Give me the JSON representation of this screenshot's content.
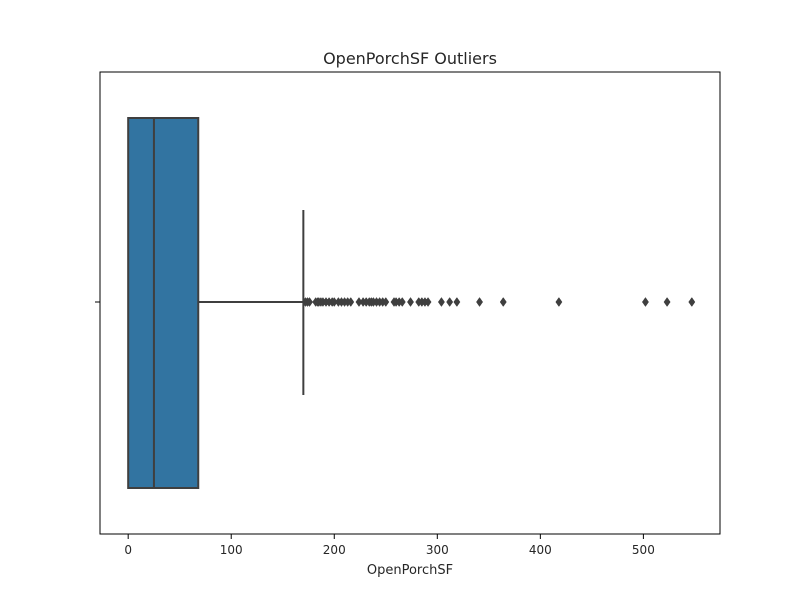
{
  "chart_data": {
    "type": "boxplot",
    "orientation": "horizontal",
    "title": "OpenPorchSF Outliers",
    "xlabel": "OpenPorchSF",
    "ylabel": "",
    "xlim": [
      -27.35,
      574.35
    ],
    "xticks": [
      0,
      100,
      200,
      300,
      400,
      500
    ],
    "xtick_labels": [
      "0",
      "100",
      "200",
      "300",
      "400",
      "500"
    ],
    "grid": false,
    "box": {
      "whisker_low": 0,
      "q1": 0,
      "median": 25,
      "q3": 68,
      "whisker_high": 170
    },
    "outliers": [
      172,
      174,
      176,
      182,
      184,
      185,
      187,
      189,
      192,
      195,
      198,
      200,
      204,
      207,
      210,
      213,
      216,
      224,
      228,
      231,
      234,
      236,
      238,
      241,
      244,
      247,
      250,
      258,
      260,
      263,
      266,
      274,
      282,
      285,
      288,
      291,
      304,
      312,
      319,
      341,
      364,
      418,
      502,
      523,
      547
    ],
    "colors": {
      "box_fill": "#3274a1",
      "line": "#3f3f3f",
      "outlier": "#3f3f3f",
      "axes": "#000000"
    }
  }
}
